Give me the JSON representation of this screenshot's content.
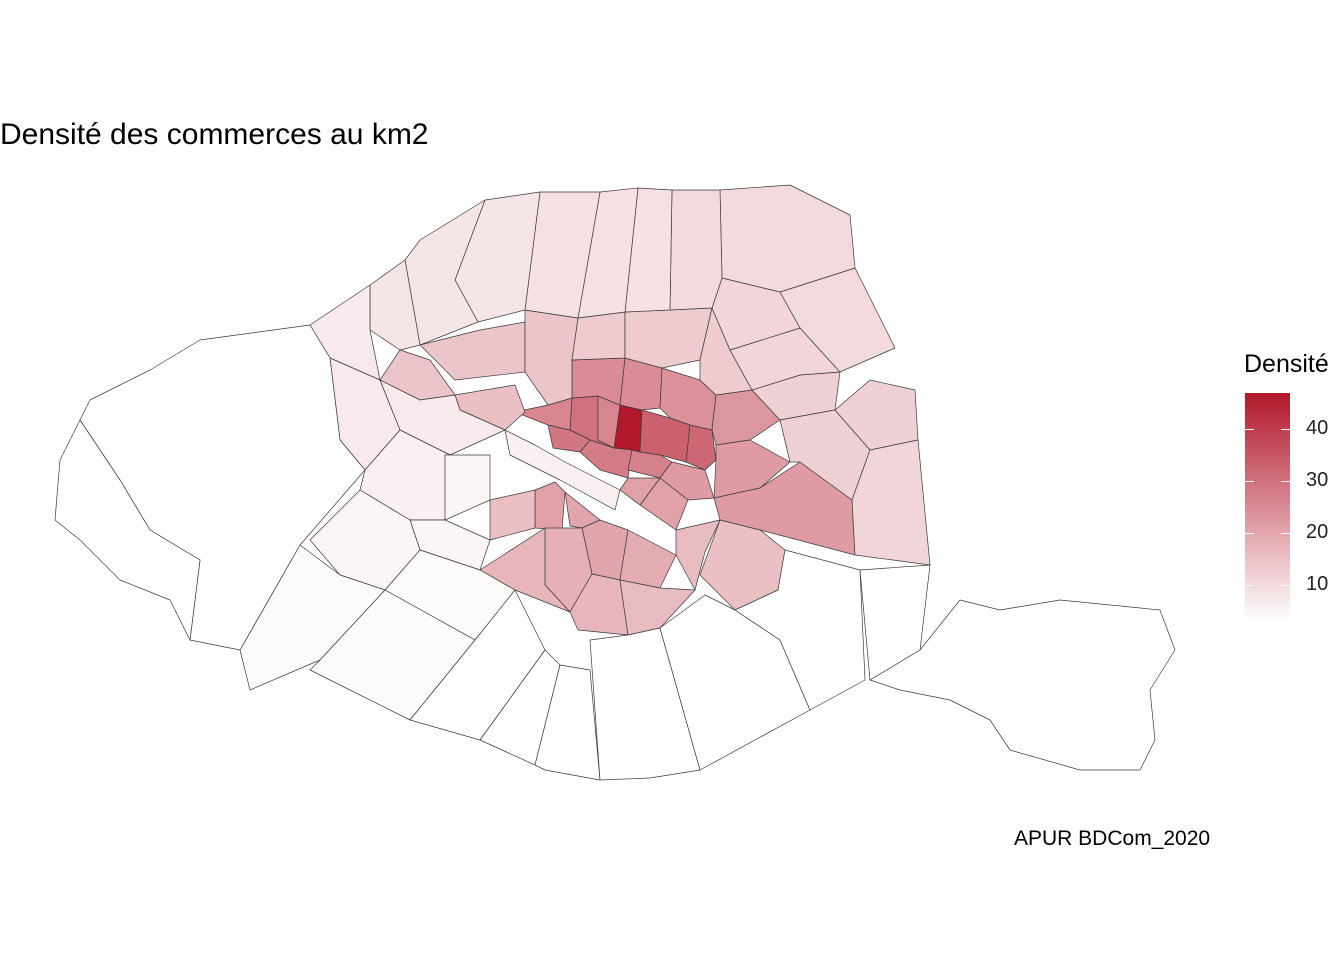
{
  "map": {
    "title": "Densité des commerces au km2",
    "caption": "APUR BDCom_2020",
    "legend": {
      "title": "Densité",
      "ticks": [
        10,
        20,
        30,
        40
      ],
      "range": [
        3,
        47
      ],
      "low_color": "#ffffff",
      "high_color": "#b2182b"
    },
    "quartiers": [
      {
        "density": 47
      },
      {
        "density": 33
      },
      {
        "density": 32
      },
      {
        "density": 30
      },
      {
        "density": 29
      },
      {
        "density": 28
      },
      {
        "density": 27
      },
      {
        "density": 26
      },
      {
        "density": 26
      },
      {
        "density": 25
      },
      {
        "density": 25
      },
      {
        "density": 24
      },
      {
        "density": 23
      },
      {
        "density": 22
      },
      {
        "density": 22
      },
      {
        "density": 22
      },
      {
        "density": 21
      },
      {
        "density": 21
      },
      {
        "density": 21
      },
      {
        "density": 20
      },
      {
        "density": 20
      },
      {
        "density": 19
      },
      {
        "density": 18
      },
      {
        "density": 17
      },
      {
        "density": 17
      },
      {
        "density": 16
      },
      {
        "density": 16
      },
      {
        "density": 15
      },
      {
        "density": 15
      },
      {
        "density": 15
      },
      {
        "density": 14
      },
      {
        "density": 14
      },
      {
        "density": 14
      },
      {
        "density": 13
      },
      {
        "density": 13
      },
      {
        "density": 13
      },
      {
        "density": 12
      },
      {
        "density": 12
      },
      {
        "density": 12
      },
      {
        "density": 11
      },
      {
        "density": 11
      },
      {
        "density": 11
      },
      {
        "density": 10
      },
      {
        "density": 10
      },
      {
        "density": 10
      },
      {
        "density": 9
      },
      {
        "density": 9
      },
      {
        "density": 9
      },
      {
        "density": 8
      },
      {
        "density": 8
      },
      {
        "density": 8
      },
      {
        "density": 7
      },
      {
        "density": 7
      },
      {
        "density": 7
      },
      {
        "density": 6
      },
      {
        "density": 6
      },
      {
        "density": 5
      },
      {
        "density": 5
      },
      {
        "density": 5
      },
      {
        "density": 4
      },
      {
        "density": 4
      },
      {
        "density": 4
      },
      {
        "density": 3
      },
      {
        "density": 3
      },
      {
        "density": 3
      },
      {
        "density": 3
      }
    ]
  }
}
